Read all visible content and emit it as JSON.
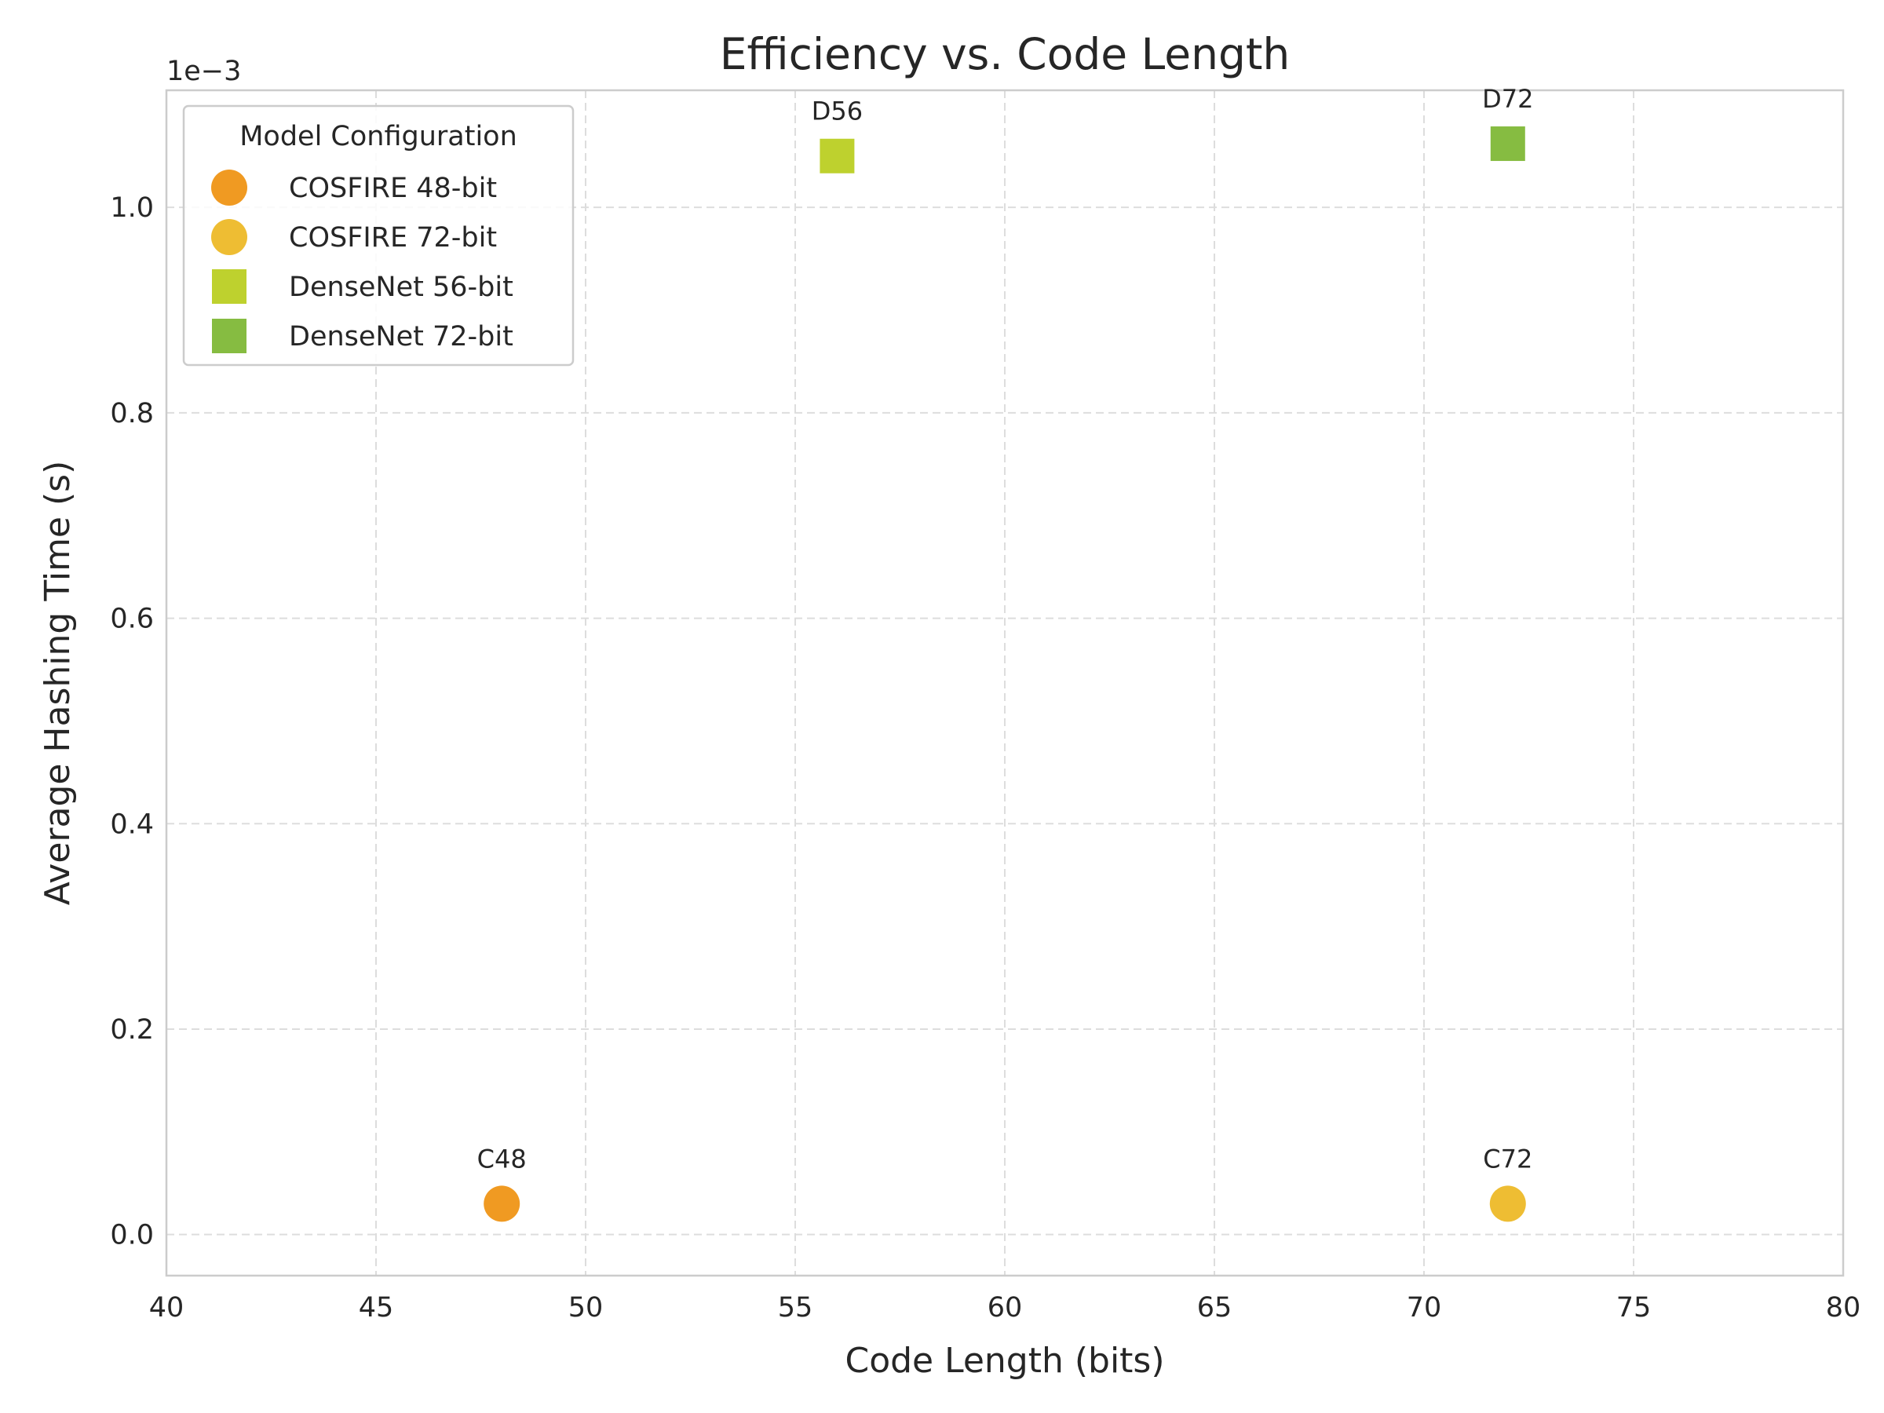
{
  "chart_data": {
    "type": "scatter",
    "title": "Efficiency vs. Code Length",
    "xlabel": "Code Length (bits)",
    "ylabel": "Average Hashing Time (s)",
    "y_offset_text": "1e−3",
    "xlim": [
      40,
      80
    ],
    "ylim": [
      -0.04,
      1.114
    ],
    "x_ticks": [
      40,
      45,
      50,
      55,
      60,
      65,
      70,
      75,
      80
    ],
    "x_tick_labels": [
      "40",
      "45",
      "50",
      "55",
      "60",
      "65",
      "70",
      "75",
      "80"
    ],
    "y_ticks": [
      0.0,
      0.2,
      0.4,
      0.6,
      0.8,
      1.0
    ],
    "y_tick_labels": [
      "0.0",
      "0.2",
      "0.4",
      "0.6",
      "0.8",
      "1.0"
    ],
    "grid": true,
    "legend": {
      "title": "Model Configuration",
      "position": "top-left"
    },
    "series": [
      {
        "name": "COSFIRE 48-bit",
        "marker": "circle",
        "color": "#F09A22",
        "points": [
          {
            "x": 48,
            "y": 0.03,
            "label": "C48"
          }
        ]
      },
      {
        "name": "COSFIRE 72-bit",
        "marker": "circle",
        "color": "#EEBD33",
        "points": [
          {
            "x": 72,
            "y": 0.03,
            "label": "C72"
          }
        ]
      },
      {
        "name": "DenseNet 56-bit",
        "marker": "square",
        "color": "#BED12E",
        "points": [
          {
            "x": 56,
            "y": 1.05,
            "label": "D56"
          }
        ]
      },
      {
        "name": "DenseNet 72-bit",
        "marker": "square",
        "color": "#86BC41",
        "points": [
          {
            "x": 72,
            "y": 1.062,
            "label": "D72"
          }
        ]
      }
    ]
  }
}
